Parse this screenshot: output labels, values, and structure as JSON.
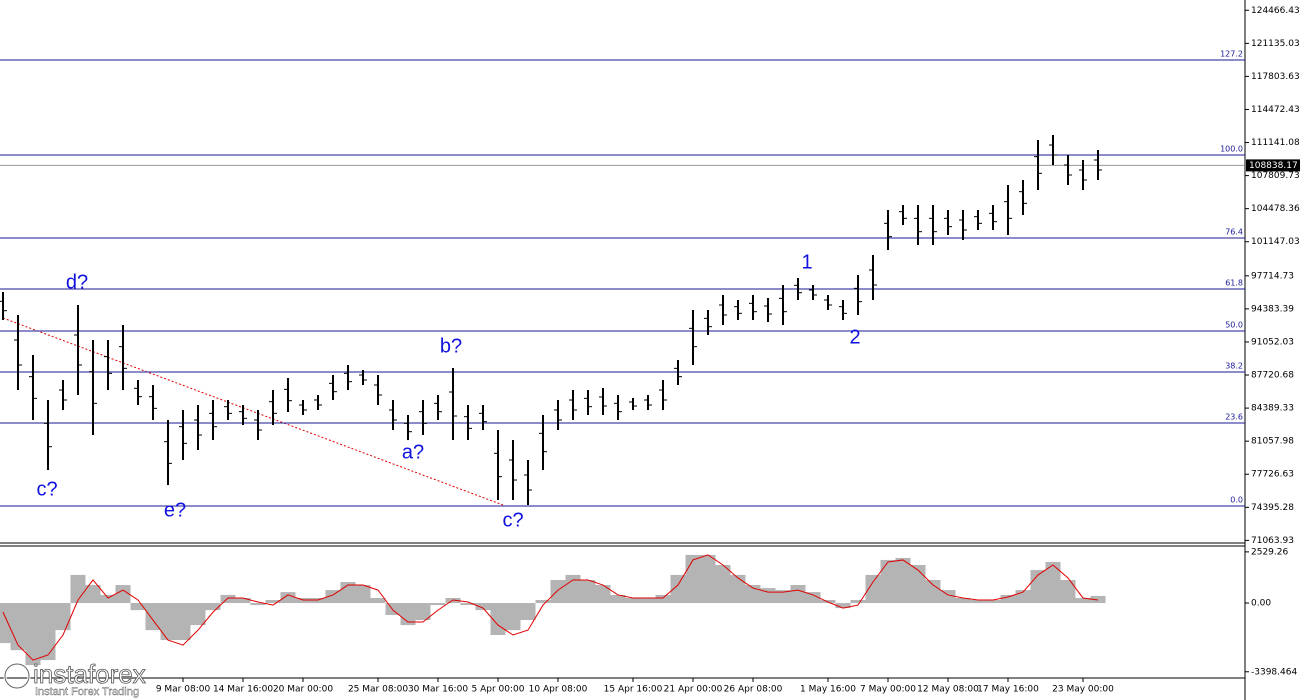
{
  "chart_data": [
    {
      "type": "ohlc",
      "categories": [
        null,
        null,
        null,
        null,
        null,
        null,
        null,
        null,
        null,
        null,
        null,
        null,
        "9 Mar 08:00",
        null,
        null,
        null,
        "14 Mar 16:00",
        null,
        null,
        null,
        "20 Mar 00:00",
        null,
        null,
        null,
        null,
        "25 Mar 08:00",
        null,
        null,
        null,
        "30 Mar 16:00",
        null,
        null,
        null,
        "5 Apr 00:00",
        null,
        null,
        null,
        "10 Apr 08:00",
        null,
        null,
        null,
        null,
        "15 Apr 16:00",
        null,
        null,
        null,
        "21 Apr 00:00",
        null,
        null,
        null,
        "26 Apr 08:00",
        null,
        null,
        null,
        null,
        "1 May 16:00",
        null,
        null,
        null,
        "7 May 00:00",
        null,
        null,
        null,
        "12 May 08:00",
        null,
        null,
        null,
        "17 May 16:00",
        null,
        null,
        null,
        null,
        "23 May 00:00",
        null
      ],
      "high": [
        96084,
        93767,
        89737,
        85204,
        87219,
        94774,
        91248,
        91248,
        92760,
        87219,
        86715,
        83189,
        84197,
        84700,
        85204,
        85204,
        84700,
        84197,
        86211,
        87420,
        85204,
        85708,
        87723,
        88730,
        88226,
        87723,
        85204,
        83693,
        85204,
        85708,
        88428,
        84700,
        84700,
        82182,
        81174,
        79160,
        83693,
        85204,
        86211,
        86211,
        86413,
        85708,
        85405,
        85708,
        87219,
        89234,
        94271,
        94271,
        95782,
        95278,
        95782,
        95480,
        96789,
        97494,
        96789,
        95782,
        95278,
        97797,
        99811,
        104345,
        104848,
        104848,
        104848,
        104345,
        104345,
        104345,
        104848,
        106863,
        107367,
        111396,
        111900,
        109885,
        109382,
        110389
      ],
      "low": [
        93263,
        86211,
        83189,
        78152,
        84197,
        85708,
        81678,
        86211,
        86211,
        84700,
        83189,
        76641,
        79160,
        80167,
        81174,
        83189,
        82686,
        81174,
        82686,
        83995,
        83693,
        84197,
        85204,
        86211,
        86715,
        84700,
        82182,
        81174,
        81678,
        83189,
        81174,
        81174,
        82182,
        75130,
        75130,
        74626,
        78152,
        82182,
        83189,
        83693,
        83693,
        83189,
        84197,
        84197,
        84197,
        86715,
        88730,
        91752,
        92760,
        93263,
        93263,
        93062,
        92760,
        95278,
        95278,
        94271,
        93263,
        93767,
        95278,
        100315,
        102834,
        100819,
        100819,
        101826,
        101322,
        102330,
        102330,
        101826,
        103841,
        106359,
        108878,
        106863,
        106359,
        107367
      ],
      "color": "#000000",
      "ylim": [
        70800,
        125500
      ],
      "yticks": [
        124466.43,
        121135.03,
        117803.63,
        114472.43,
        111141.08,
        107809.73,
        104478.36,
        101147.03,
        97714.73,
        94383.39,
        91052.03,
        87720.68,
        84389.33,
        81057.98,
        77726.63,
        74395.28,
        71063.93
      ],
      "last_price": 108838.17,
      "levels": [
        {
          "label": "127.2",
          "value": 119456
        },
        {
          "label": "100.0",
          "value": 109885
        },
        {
          "label": "76.4",
          "value": 101524
        },
        {
          "label": "61.8",
          "value": 96386
        },
        {
          "label": "50.0",
          "value": 92155
        },
        {
          "label": "38.2",
          "value": 88025
        },
        {
          "label": "23.6",
          "value": 82887
        },
        {
          "label": "0.0",
          "value": 74526
        }
      ],
      "level_color": "#1a1a96",
      "annotations": [
        "d?",
        "c?",
        "e?",
        "b?",
        "a?",
        "c?",
        "1",
        "2"
      ],
      "annotation_color": "#1010e0"
    },
    {
      "type": "macd",
      "histogram": [
        -1980,
        -2330,
        -3070,
        -2820,
        -1340,
        1390,
        890,
        400,
        890,
        -350,
        -1340,
        -1830,
        -1830,
        -1090,
        -350,
        400,
        250,
        -100,
        150,
        540,
        250,
        250,
        640,
        1040,
        890,
        250,
        -590,
        -1090,
        -840,
        -100,
        250,
        -100,
        -350,
        -1580,
        -1340,
        -840,
        150,
        1140,
        1390,
        1140,
        890,
        400,
        250,
        250,
        400,
        1390,
        2380,
        2380,
        1880,
        1390,
        890,
        740,
        640,
        890,
        540,
        150,
        -250,
        150,
        1390,
        2130,
        2230,
        1880,
        1140,
        640,
        250,
        150,
        150,
        400,
        640,
        1630,
        2030,
        1140,
        250,
        350
      ],
      "signal": [
        -450,
        -2080,
        -2820,
        -2570,
        -1580,
        150,
        1140,
        250,
        640,
        150,
        -840,
        -1830,
        -2080,
        -1340,
        -450,
        250,
        250,
        50,
        -100,
        400,
        150,
        150,
        400,
        890,
        890,
        640,
        -350,
        -940,
        -940,
        -350,
        150,
        50,
        -250,
        -1090,
        -1580,
        -1340,
        -100,
        640,
        1140,
        1140,
        890,
        400,
        250,
        250,
        250,
        890,
        2130,
        2380,
        1880,
        1240,
        740,
        540,
        540,
        640,
        400,
        50,
        -250,
        -100,
        1040,
        2030,
        2130,
        1630,
        890,
        400,
        250,
        150,
        150,
        300,
        540,
        1390,
        1880,
        1240,
        250,
        150
      ],
      "histogram_color": "#b4b4b4",
      "signal_color": "#e00000",
      "ylim": [
        -4300,
        2820
      ],
      "yticks": [
        2529.26,
        {
          "value": 0,
          "label": "0.00"
        },
        -3398.464
      ]
    }
  ],
  "brand": {
    "name": "instaforex",
    "tagline": "Instant Forex Trading"
  }
}
